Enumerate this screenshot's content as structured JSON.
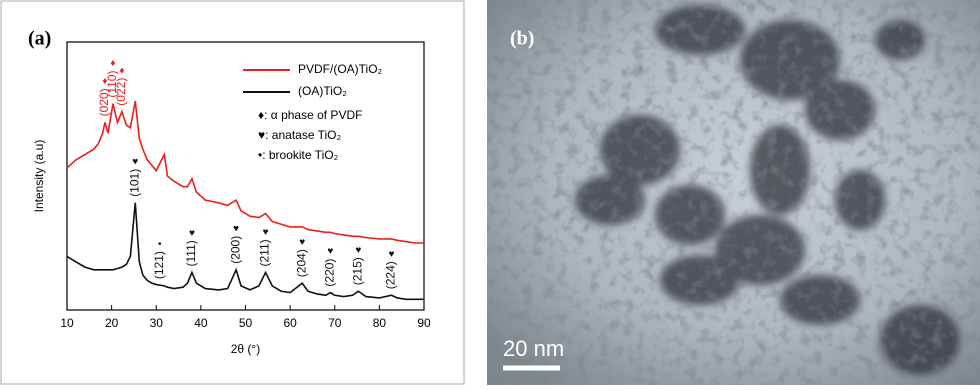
{
  "chart_data": {
    "type": "line",
    "panel_label": "(a)",
    "xlabel": "2θ (°)",
    "ylabel": "Intensity (a.u)",
    "x": [
      10,
      12,
      14,
      16,
      17,
      18,
      18.5,
      19.2,
      20.3,
      21.3,
      22.3,
      23.3,
      24.2,
      25.3,
      26.2,
      27,
      28,
      29,
      30,
      31.8,
      32.5,
      34,
      36,
      37,
      38,
      39,
      41,
      44,
      46,
      47.9,
      49,
      51,
      53,
      54.5,
      56,
      58,
      60,
      62.7,
      64,
      66,
      68,
      69,
      70,
      72,
      74,
      75.3,
      77,
      80,
      82.7,
      84,
      86,
      88,
      90
    ],
    "series": [
      {
        "name": "PVDF/(OA)TiO₂",
        "color": "#e8201c",
        "values": [
          53,
          56,
          58,
          60,
          62,
          66,
          70,
          66,
          77,
          70,
          74,
          69,
          68,
          78,
          64,
          60,
          56,
          54,
          52,
          58,
          50,
          48,
          46,
          46,
          49,
          44,
          41,
          40,
          39,
          41,
          37,
          35,
          34.5,
          36,
          33,
          32,
          31,
          31,
          30,
          29.5,
          29,
          29,
          28.5,
          28,
          27.5,
          27.5,
          27,
          26.5,
          26.5,
          26,
          25.5,
          25,
          25
        ],
        "peaks": [
          {
            "label": "(020)",
            "symbol": "♦",
            "x": 18.5
          },
          {
            "label": "(110)",
            "symbol": "♦",
            "x": 20.3
          },
          {
            "label": "(022)",
            "symbol": "♦",
            "x": 22.3
          }
        ]
      },
      {
        "name": "(OA)TiO₂",
        "color": "#111111",
        "values": [
          20,
          18,
          16,
          15,
          15,
          15,
          15,
          15,
          15,
          15.5,
          16,
          17,
          20,
          40,
          18,
          13,
          11,
          10,
          9.5,
          9,
          8.5,
          8,
          8.5,
          10,
          14,
          10,
          8,
          7.5,
          8,
          15,
          9,
          7.5,
          9,
          14,
          9,
          7,
          6.5,
          10,
          7,
          6,
          5.5,
          6.5,
          5.5,
          5,
          5.5,
          7,
          5,
          4.5,
          5.5,
          4.5,
          4,
          4,
          4
        ],
        "peaks": [
          {
            "label": "(101)",
            "symbol": "♥",
            "x": 25.3
          },
          {
            "label": "(121)",
            "symbol": "•",
            "x": 30.8
          },
          {
            "label": "(111)",
            "symbol": "♥",
            "x": 38
          },
          {
            "label": "(200)",
            "symbol": "♥",
            "x": 47.9
          },
          {
            "label": "(211)",
            "symbol": "♥",
            "x": 54.5
          },
          {
            "label": "(204)",
            "symbol": "♥",
            "x": 62.7
          },
          {
            "label": "(220)",
            "symbol": "♥",
            "x": 69
          },
          {
            "label": "(215)",
            "symbol": "♥",
            "x": 75.3
          },
          {
            "label": "(224)",
            "symbol": "♥",
            "x": 82.7
          }
        ]
      }
    ],
    "notes": [
      "♦: α phase of PVDF",
      "♥: anatase TiO₂",
      "•: brookite TiO₂"
    ],
    "xlim": [
      10,
      90
    ],
    "xticks": [
      10,
      20,
      30,
      40,
      50,
      60,
      70,
      80,
      90
    ],
    "ylim": [
      0,
      100
    ]
  },
  "image": {
    "panel_label": "(b)",
    "scale_bar": "20 nm"
  }
}
